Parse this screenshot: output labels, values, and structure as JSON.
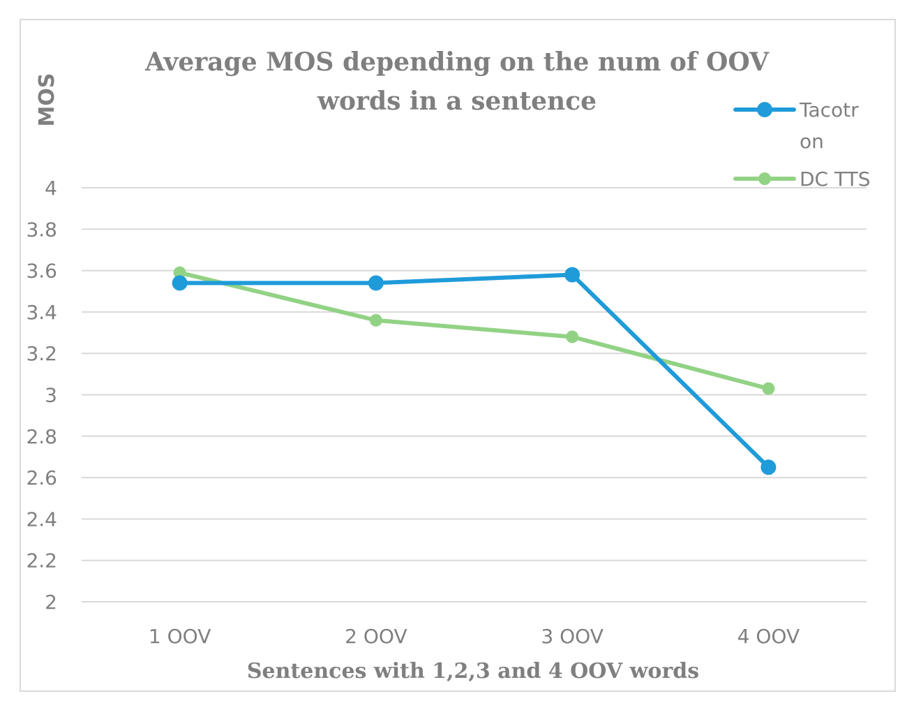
{
  "chart_data": {
    "type": "line",
    "title_lines": [
      "Average MOS  depending on the num of OOV",
      "words in a sentence"
    ],
    "ylabel": "MOS",
    "xlabel": "Sentences with 1,2,3 and 4 OOV words",
    "categories": [
      "1 OOV",
      "2 OOV",
      "3 OOV",
      "4 OOV"
    ],
    "ylim": [
      2,
      4
    ],
    "yticks": [
      "2",
      "2.2",
      "2.4",
      "2.6",
      "2.8",
      "3",
      "3.2",
      "3.4",
      "3.6",
      "3.8",
      "4"
    ],
    "grid": true,
    "legend_position": "top-right",
    "series": [
      {
        "name": "Tacotron",
        "legend_lines": [
          "Tacotr",
          "on"
        ],
        "color": "#1f9bd9",
        "values": [
          3.54,
          3.54,
          3.58,
          2.65
        ]
      },
      {
        "name": "DC TTS",
        "legend_lines": [
          "DC TTS"
        ],
        "color": "#92d285",
        "values": [
          3.59,
          3.36,
          3.28,
          3.03
        ]
      }
    ]
  }
}
